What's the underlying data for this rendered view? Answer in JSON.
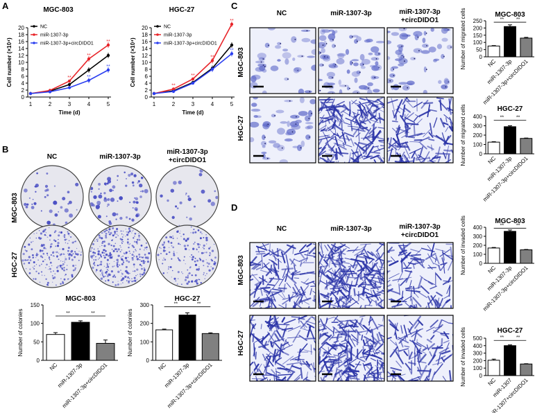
{
  "panels": {
    "a": "A",
    "b": "B",
    "c": "C",
    "d": "D"
  },
  "colors": {
    "nc": "#000000",
    "mir": "#e8252a",
    "combo": "#2b3ff0",
    "stain": "#4a4fc4",
    "bar_mir": "#000000",
    "bar_combo": "#808080"
  },
  "groups": {
    "nc": "NC",
    "mir": "miR-1307-3p",
    "combo_line1": "miR-1307-3p",
    "combo_line2": "+circDIDO1",
    "combo_full": "miR-1307-3p+circDIDO1",
    "mir_short": "miR-1307",
    "combo_short": "miR-1307+circDIDO1"
  },
  "cells": {
    "mgc": "MGC-803",
    "hgc": "HGC-27"
  },
  "sig": "**",
  "growth": {
    "ylabel": "Cell number (×10⁴)",
    "xlabel": "Time (d)",
    "legend": [
      "NC",
      "miR-1307-3p",
      "miR-1307-3p+circDIDO1"
    ],
    "y_ticks": [
      "0",
      "2",
      "4",
      "6",
      "8",
      "10",
      "12",
      "14",
      "16",
      "18",
      "20"
    ],
    "x_ticks": [
      "1",
      "2",
      "3",
      "4",
      "5"
    ]
  },
  "chart_data": [
    {
      "type": "line",
      "title": "MGC-803",
      "xlabel": "Time (d)",
      "ylabel": "Cell number (×10⁴)",
      "x": [
        1,
        2,
        3,
        4,
        5
      ],
      "ylim": [
        0,
        20
      ],
      "legend": "top-left",
      "series": [
        {
          "name": "NC",
          "values": [
            1.0,
            1.7,
            3.6,
            7.8,
            12.0
          ]
        },
        {
          "name": "miR-1307-3p",
          "values": [
            1.0,
            1.9,
            4.6,
            11.0,
            15.0
          ]
        },
        {
          "name": "miR-1307-3p+circDIDO1",
          "values": [
            1.0,
            1.5,
            2.7,
            4.8,
            7.8
          ]
        }
      ]
    },
    {
      "type": "line",
      "title": "HGC-27",
      "xlabel": "Time (d)",
      "ylabel": "Cell number (×10⁴)",
      "x": [
        1,
        2,
        3,
        4,
        5
      ],
      "ylim": [
        0,
        20
      ],
      "legend": "top-left",
      "series": [
        {
          "name": "NC",
          "values": [
            1.0,
            1.8,
            4.2,
            8.3,
            15.0
          ]
        },
        {
          "name": "miR-1307-3p",
          "values": [
            1.0,
            2.3,
            5.2,
            10.5,
            21.0
          ]
        },
        {
          "name": "miR-1307-3p+circDIDO1",
          "values": [
            1.0,
            1.6,
            4.0,
            8.0,
            12.5
          ]
        }
      ]
    },
    {
      "type": "bar",
      "title": "MGC-803",
      "ylabel": "Number of colonies",
      "categories": [
        "NC",
        "miR-1307-3p",
        "miR-1307-3p+circDIDO1"
      ],
      "values": [
        70,
        103,
        46
      ],
      "errors": [
        5,
        4,
        9
      ],
      "ylim": [
        0,
        150
      ],
      "y_ticks": [
        "0",
        "50",
        "100",
        "150"
      ]
    },
    {
      "type": "bar",
      "title": "HGC-27",
      "ylabel": "Number of colonies",
      "categories": [
        "NC",
        "miR-1307-3p",
        "miR-1307-3p+circDIDO1"
      ],
      "values": [
        165,
        245,
        145
      ],
      "errors": [
        4,
        12,
        4
      ],
      "ylim": [
        0,
        300
      ],
      "y_ticks": [
        "0",
        "100",
        "200",
        "300"
      ]
    },
    {
      "type": "bar",
      "title": "MGC-803",
      "ylabel": "Number of migrated cells",
      "categories": [
        "NC",
        "miR-1307-3p",
        "miR-1307-3p+circDIDO1"
      ],
      "values": [
        75,
        210,
        130
      ],
      "errors": [
        3,
        12,
        5
      ],
      "ylim": [
        0,
        250
      ],
      "y_ticks": [
        "0",
        "50",
        "100",
        "150",
        "200",
        "250"
      ]
    },
    {
      "type": "bar",
      "title": "HGC-27",
      "ylabel": "Number of migrated cells",
      "categories": [
        "NC",
        "miR-1307-3p",
        "miR-1307-3p+circDIDO1"
      ],
      "values": [
        125,
        290,
        165
      ],
      "errors": [
        5,
        10,
        4
      ],
      "ylim": [
        0,
        400
      ],
      "y_ticks": [
        "0",
        "100",
        "200",
        "300",
        "400"
      ]
    },
    {
      "type": "bar",
      "title": "MGC-803",
      "ylabel": "Number of invaded cells",
      "categories": [
        "NC",
        "miR-1307-3p",
        "miR-1307-3p+circDIDO1"
      ],
      "values": [
        170,
        355,
        150
      ],
      "errors": [
        6,
        15,
        4
      ],
      "ylim": [
        0,
        400
      ],
      "y_ticks": [
        "0",
        "100",
        "200",
        "300",
        "400"
      ]
    },
    {
      "type": "bar",
      "title": "HGC-27",
      "ylabel": "Number of invaded cells",
      "categories": [
        "NC",
        "miR-1307",
        "miR-1307+circDIDO1"
      ],
      "values": [
        205,
        400,
        155
      ],
      "errors": [
        15,
        10,
        4
      ],
      "ylim": [
        0,
        500
      ],
      "y_ticks": [
        "0",
        "100",
        "200",
        "300",
        "400",
        "500"
      ]
    }
  ]
}
